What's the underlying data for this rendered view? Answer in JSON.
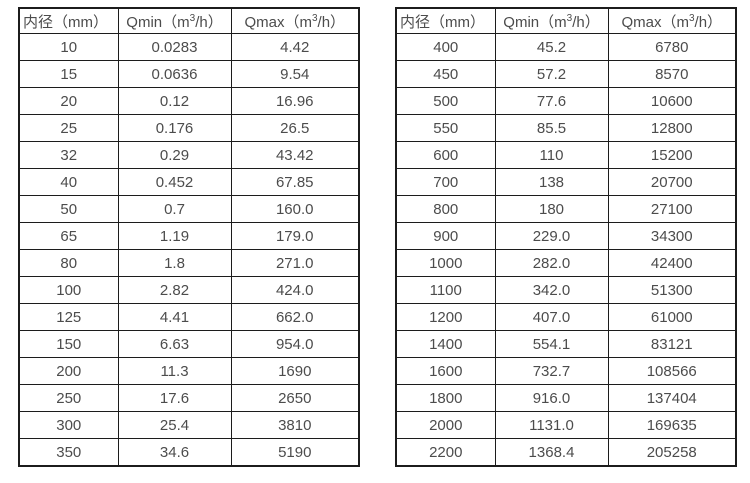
{
  "tables": [
    {
      "name": "small-diameter-flow-ranges",
      "headers": {
        "diameter": "内径（mm）",
        "qmin_pre": "Qmin（m",
        "qmin_sup": "3",
        "qmin_post": "/h）",
        "qmax_pre": "Qmax（m",
        "qmax_sup": "3",
        "qmax_post": "/h）"
      },
      "rows": [
        [
          "10",
          "0.0283",
          "4.42"
        ],
        [
          "15",
          "0.0636",
          "9.54"
        ],
        [
          "20",
          "0.12",
          "16.96"
        ],
        [
          "25",
          "0.176",
          "26.5"
        ],
        [
          "32",
          "0.29",
          "43.42"
        ],
        [
          "40",
          "0.452",
          "67.85"
        ],
        [
          "50",
          "0.7",
          "160.0"
        ],
        [
          "65",
          "1.19",
          "179.0"
        ],
        [
          "80",
          "1.8",
          "271.0"
        ],
        [
          "100",
          "2.82",
          "424.0"
        ],
        [
          "125",
          "4.41",
          "662.0"
        ],
        [
          "150",
          "6.63",
          "954.0"
        ],
        [
          "200",
          "11.3",
          "1690"
        ],
        [
          "250",
          "17.6",
          "2650"
        ],
        [
          "300",
          "25.4",
          "3810"
        ],
        [
          "350",
          "34.6",
          "5190"
        ]
      ]
    },
    {
      "name": "large-diameter-flow-ranges",
      "headers": {
        "diameter": "内径（mm）",
        "qmin_pre": "Qmin（m",
        "qmin_sup": "3",
        "qmin_post": "/h）",
        "qmax_pre": "Qmax（m",
        "qmax_sup": "3",
        "qmax_post": "/h）"
      },
      "rows": [
        [
          "400",
          "45.2",
          "6780"
        ],
        [
          "450",
          "57.2",
          "8570"
        ],
        [
          "500",
          "77.6",
          "10600"
        ],
        [
          "550",
          "85.5",
          "12800"
        ],
        [
          "600",
          "110",
          "15200"
        ],
        [
          "700",
          "138",
          "20700"
        ],
        [
          "800",
          "180",
          "27100"
        ],
        [
          "900",
          "229.0",
          "34300"
        ],
        [
          "1000",
          "282.0",
          "42400"
        ],
        [
          "1100",
          "342.0",
          "51300"
        ],
        [
          "1200",
          "407.0",
          "61000"
        ],
        [
          "1400",
          "554.1",
          "83121"
        ],
        [
          "1600",
          "732.7",
          "108566"
        ],
        [
          "1800",
          "916.0",
          "137404"
        ],
        [
          "2000",
          "1131.0",
          "169635"
        ],
        [
          "2200",
          "1368.4",
          "205258"
        ]
      ]
    }
  ]
}
